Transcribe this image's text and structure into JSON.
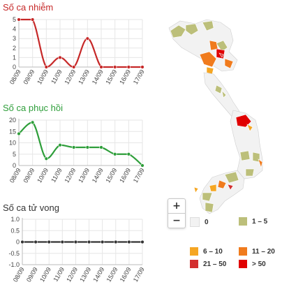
{
  "charts": [
    {
      "title": "Số ca nhiễm",
      "color": "#c62828"
    },
    {
      "title": "Số ca phục hồi",
      "color": "#2e9e3a"
    },
    {
      "title": "Số ca tử vong",
      "color": "#333333"
    }
  ],
  "chart_data": [
    {
      "type": "line",
      "title": "Số ca nhiễm",
      "x": [
        "08/09",
        "09/09",
        "10/09",
        "11/09",
        "12/09",
        "13/09",
        "14/09",
        "15/09",
        "16/09",
        "17/09"
      ],
      "values": [
        5,
        5,
        0,
        1,
        0,
        3,
        0,
        0,
        0,
        0
      ],
      "ylim": [
        0,
        5
      ],
      "yticks": [
        "0",
        "1",
        "2",
        "3",
        "4",
        "5"
      ],
      "color": "#c62828",
      "grid": true
    },
    {
      "type": "line",
      "title": "Số ca phục hồi",
      "x": [
        "08/09",
        "09/09",
        "10/09",
        "11/09",
        "12/09",
        "13/09",
        "14/09",
        "15/09",
        "16/09",
        "17/09"
      ],
      "values": [
        14,
        19,
        3,
        9,
        8,
        8,
        8,
        5,
        5,
        0
      ],
      "ylim": [
        0,
        20
      ],
      "yticks": [
        "0",
        "5",
        "10",
        "15",
        "20"
      ],
      "color": "#2e9e3a",
      "grid": true
    },
    {
      "type": "line",
      "title": "Số ca tử vong",
      "x": [
        "08/09",
        "09/09",
        "10/09",
        "11/09",
        "12/09",
        "13/09",
        "14/09",
        "15/09",
        "16/09",
        "17/09"
      ],
      "values": [
        0,
        0,
        0,
        0,
        0,
        0,
        0,
        0,
        0,
        0
      ],
      "ylim": [
        -1,
        1
      ],
      "yticks": [
        "-1.0",
        "-0.5",
        "0",
        "0.5",
        "1.0"
      ],
      "color": "#333333",
      "grid": true
    }
  ],
  "map": {
    "zoom_in": "+",
    "zoom_out": "−",
    "legend": [
      {
        "label": "0",
        "color": "#f2f2f2"
      },
      {
        "label": "1 – 5",
        "color": "#bcbf7a"
      },
      {
        "label": "6 – 10",
        "color": "#f5a623"
      },
      {
        "label": "11 – 20",
        "color": "#f07b1d"
      },
      {
        "label": "21 – 50",
        "color": "#d32f2f"
      },
      {
        "label": "> 50",
        "color": "#e00000"
      }
    ]
  }
}
